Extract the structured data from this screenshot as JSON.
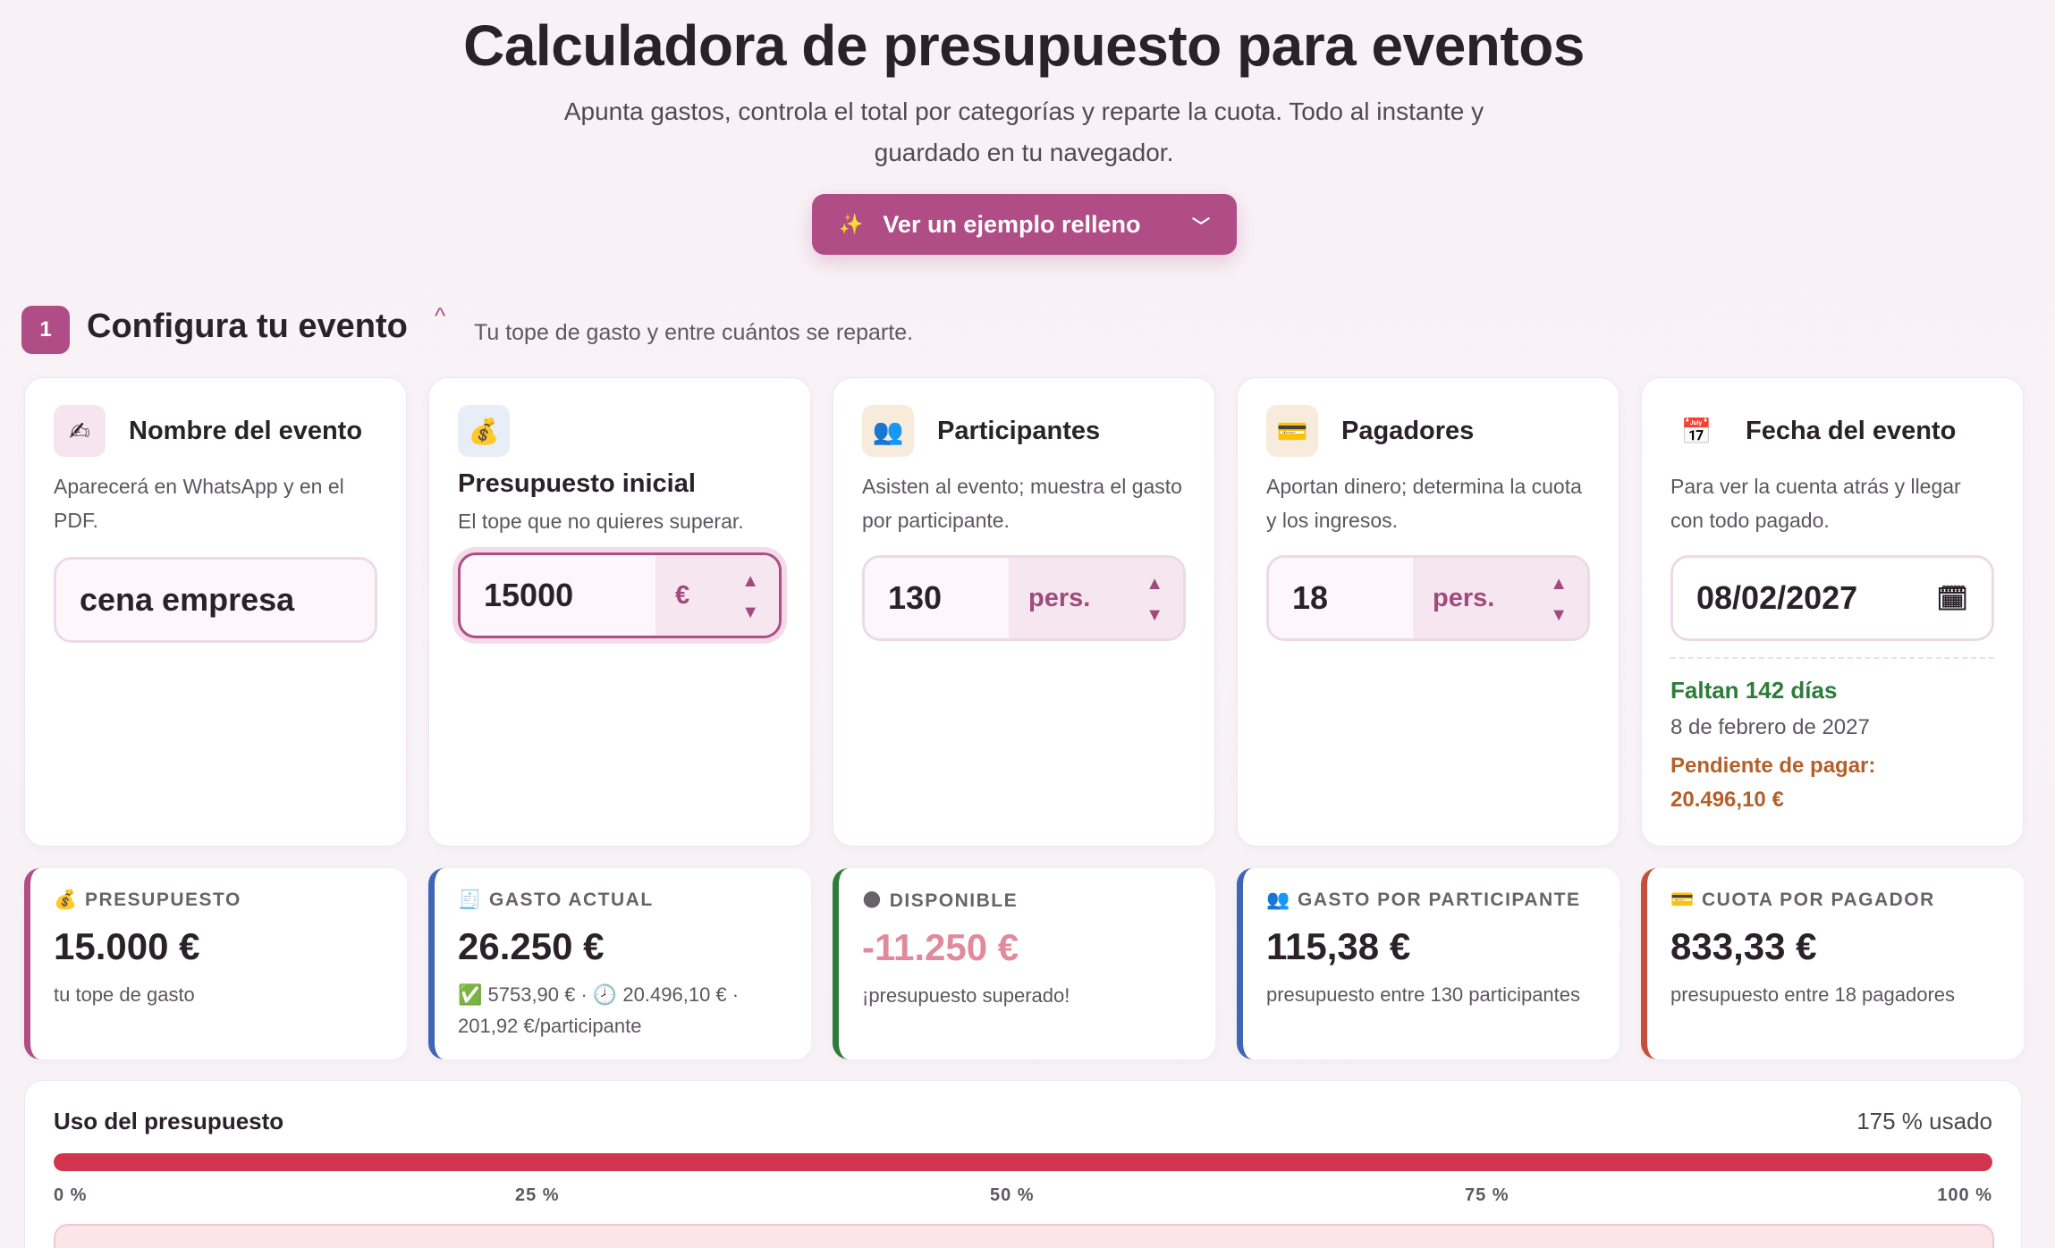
{
  "header": {
    "title": "Calculadora de presupuesto para eventos",
    "subtitle": "Apunta gastos, controla el total por categorías y reparte la cuota. Todo al instante y guardado en tu navegador.",
    "example_button": "Ver un ejemplo relleno"
  },
  "section1": {
    "number": "1",
    "title": "Configura tu evento",
    "description": "Tu tope de gasto y entre cuántos se reparte."
  },
  "cards": {
    "nombre": {
      "icon": "writing-hand-icon",
      "title": "Nombre del evento",
      "description": "Aparecerá en WhatsApp y en el PDF.",
      "value": "cena empresa"
    },
    "presupuesto": {
      "icon": "money-bag-icon",
      "title": "Presupuesto inicial",
      "description": "El tope que no quieres superar.",
      "value": "15000",
      "unit": "€"
    },
    "participantes": {
      "icon": "people-icon",
      "title": "Participantes",
      "description": "Asisten al evento; muestra el gasto por participante.",
      "value": "130",
      "unit": "pers."
    },
    "pagadores": {
      "icon": "credit-card-icon",
      "title": "Pagadores",
      "description": "Aportan dinero; determina la cuota y los ingresos.",
      "value": "18",
      "unit": "pers."
    },
    "fecha": {
      "icon": "calendar-icon",
      "title": "Fecha del evento",
      "description": "Para ver la cuenta atrás y llegar con todo pagado.",
      "value": "08/02/2027",
      "countdown": "Faltan 142 días",
      "long_date": "8 de febrero de 2027",
      "pending_label": "Pendiente de pagar:",
      "pending_value": "20.496,10 €"
    }
  },
  "stats": [
    {
      "icon": "money-bag-icon",
      "label": "PRESUPUESTO",
      "value": "15.000 €",
      "sub": "tu tope de gasto",
      "color": "#b04c86"
    },
    {
      "icon": "receipt-icon",
      "label": "GASTO ACTUAL",
      "value": "26.250 €",
      "sub": "✅ 5753,90 € · 🕗 20.496,10 € · 201,92 €/participante",
      "color": "#3f66b5"
    },
    {
      "icon": "globe-icon",
      "label": "DISPONIBLE",
      "value": "-11.250 €",
      "sub": "¡presupuesto superado!",
      "color": "#2d7d3a"
    },
    {
      "icon": "people-icon",
      "label": "GASTO POR PARTICIPANTE",
      "value": "115,38 €",
      "sub": "presupuesto entre 130 participantes",
      "color": "#3f66b5"
    },
    {
      "icon": "credit-card-icon",
      "label": "CUOTA POR PAGADOR",
      "value": "833,33 €",
      "sub": "presupuesto entre 18 pagadores",
      "color": "#c3503b"
    }
  ],
  "usage": {
    "title": "Uso del presupuesto",
    "used_label": "175 % usado",
    "fill_fraction": 1.0,
    "ticks": [
      "0 %",
      "25 %",
      "50 %",
      "75 %",
      "100 %"
    ]
  },
  "colors": {
    "accent": "#b04c86",
    "danger": "#d0354d",
    "negative_value": "#e08a9c"
  }
}
